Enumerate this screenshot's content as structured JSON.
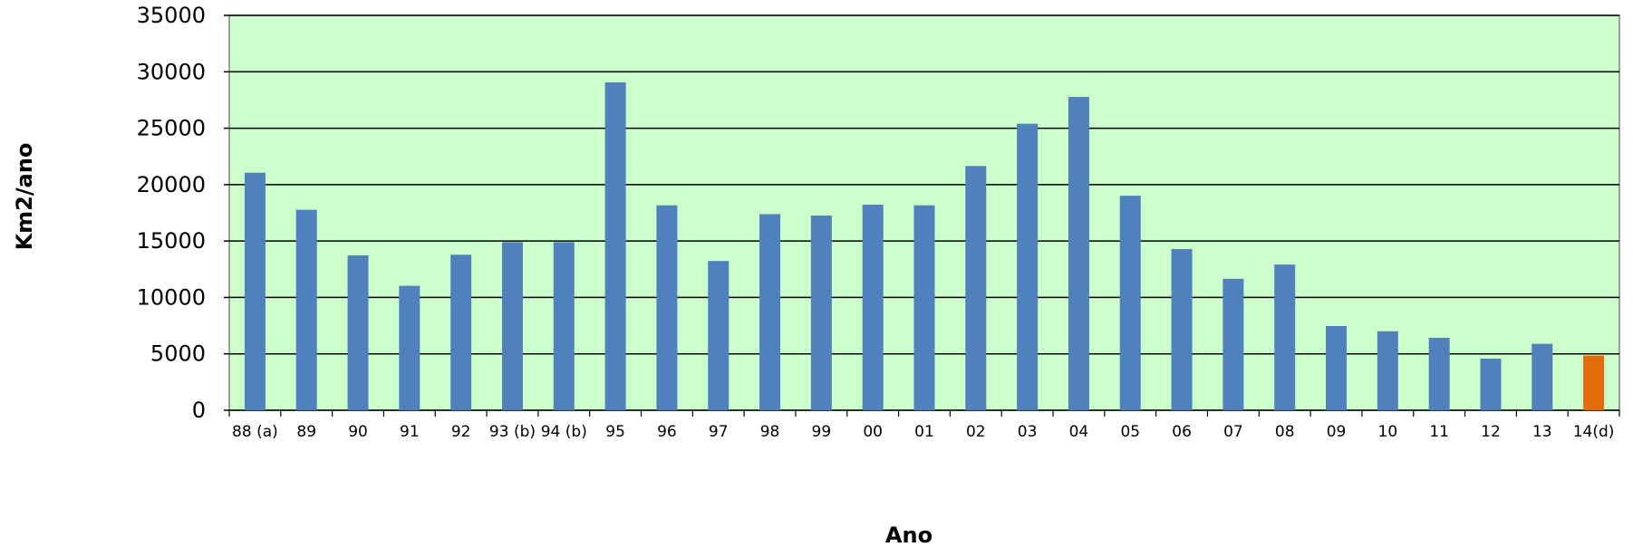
{
  "chart_data": {
    "type": "bar",
    "xlabel": "Ano",
    "ylabel": "Km2/ano",
    "ylim": [
      0,
      35000
    ],
    "yticks": [
      0,
      5000,
      10000,
      15000,
      20000,
      25000,
      30000,
      35000
    ],
    "grid": true,
    "categories": [
      "88 (a)",
      "89",
      "90",
      "91",
      "92",
      "93 (b)",
      "94 (b)",
      "95",
      "96",
      "97",
      "98",
      "99",
      "00",
      "01",
      "02",
      "03",
      "04",
      "05",
      "06",
      "07",
      "08",
      "09",
      "10",
      "11",
      "12",
      "13",
      "14(d)"
    ],
    "values": [
      21050,
      17770,
      13730,
      11030,
      13786,
      14896,
      14896,
      29059,
      18161,
      13227,
      17383,
      17259,
      18226,
      18165,
      21651,
      25396,
      27772,
      19014,
      14286,
      11651,
      12911,
      7464,
      7000,
      6418,
      4571,
      5891,
      4848
    ],
    "highlight_index": 26,
    "colors": {
      "bar": "#4f81bd",
      "highlight": "#e36c0a",
      "plot_background": "#ccffcc",
      "gridline": "#000000"
    }
  }
}
